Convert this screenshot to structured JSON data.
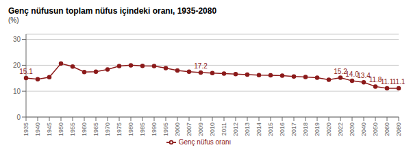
{
  "chart_data": {
    "type": "line",
    "title": "Genç nüfusun toplam nüfus içindeki oranı, 1935-2080",
    "ylabel": "(%)",
    "categories": [
      "1935",
      "1940",
      "1945",
      "1950",
      "1955",
      "1960",
      "1965",
      "1970",
      "1975",
      "1980",
      "1985",
      "1990",
      "1995",
      "2000",
      "2007",
      "2009",
      "2010",
      "2011",
      "2012",
      "2013",
      "2014",
      "2015",
      "2016",
      "2017",
      "2018",
      "2019",
      "2020",
      "2022",
      "2030",
      "2040",
      "2050",
      "2060",
      "2080"
    ],
    "series": [
      {
        "name": "Genç nüfus oranı",
        "color": "#8B1A1A",
        "marker": "circle",
        "values": [
          15.1,
          14.6,
          15.4,
          20.7,
          19.5,
          17.4,
          17.5,
          18.4,
          19.7,
          20.0,
          19.8,
          19.7,
          18.9,
          18.0,
          17.5,
          17.2,
          17.0,
          16.8,
          16.6,
          16.4,
          16.2,
          16.1,
          16.0,
          15.7,
          15.5,
          15.2,
          14.4,
          15.2,
          14.0,
          13.4,
          11.8,
          11.1,
          11.1
        ]
      }
    ],
    "annotations": [
      {
        "x": "1935",
        "y": 15.1,
        "label": "15.1"
      },
      {
        "x": "2009",
        "y": 17.2,
        "label": "17.2"
      },
      {
        "x": "2022",
        "y": 15.2,
        "label": "15.2"
      },
      {
        "x": "2030",
        "y": 14.0,
        "label": "14.0"
      },
      {
        "x": "2040",
        "y": 13.4,
        "label": "13.4"
      },
      {
        "x": "2050",
        "y": 11.8,
        "label": "11.8"
      },
      {
        "x": "2060",
        "y": 11.1,
        "label": "11.1"
      },
      {
        "x": "2080",
        "y": 11.1,
        "label": "11.1"
      }
    ],
    "ylim": [
      0,
      32
    ],
    "yticks": [
      0,
      10,
      20,
      30
    ],
    "grid": true,
    "legend": "bottom"
  }
}
